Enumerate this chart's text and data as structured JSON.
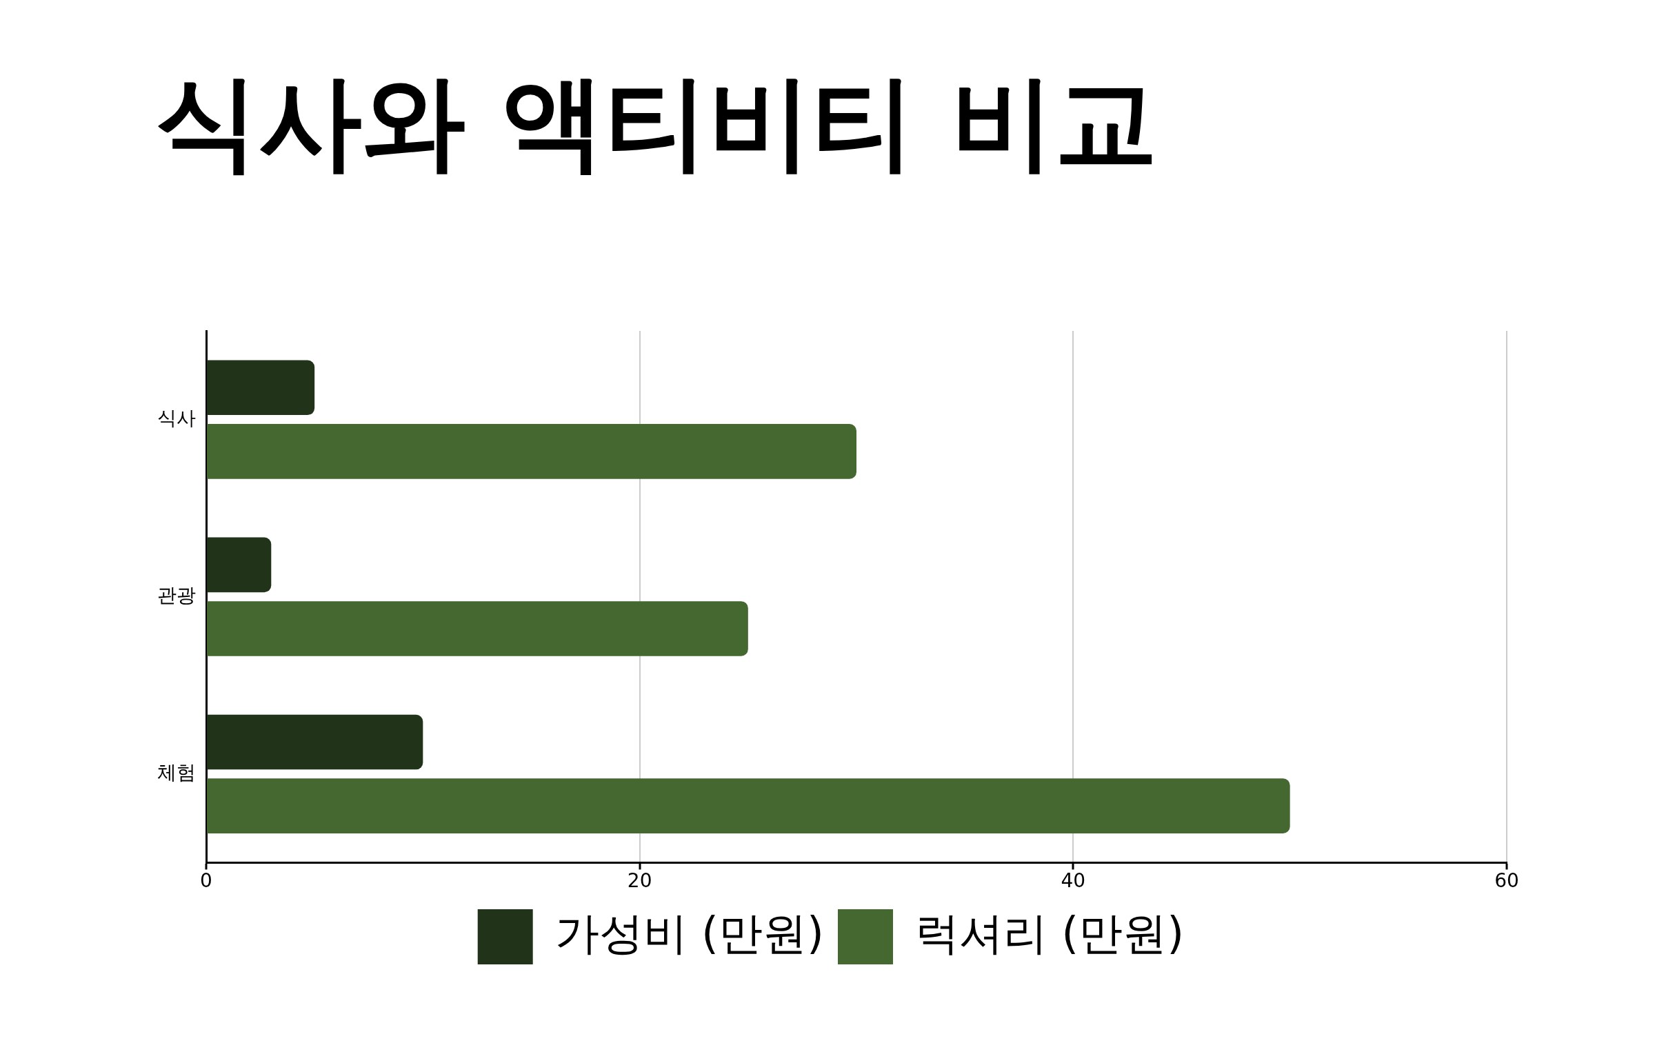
{
  "chart_data": {
    "type": "bar",
    "orientation": "horizontal",
    "title": "식사와 액티비티 비교",
    "categories": [
      "식사",
      "관광",
      "체험"
    ],
    "series": [
      {
        "name": "가성비 (만원)",
        "color": "#21341a",
        "values": [
          5,
          3,
          10
        ]
      },
      {
        "name": "럭셔리 (만원)",
        "color": "#446830",
        "values": [
          30,
          25,
          50
        ]
      }
    ],
    "xlim": [
      0,
      60
    ],
    "xticks": [
      0,
      20,
      40,
      60
    ],
    "grid": "x",
    "legend": "bottom"
  }
}
